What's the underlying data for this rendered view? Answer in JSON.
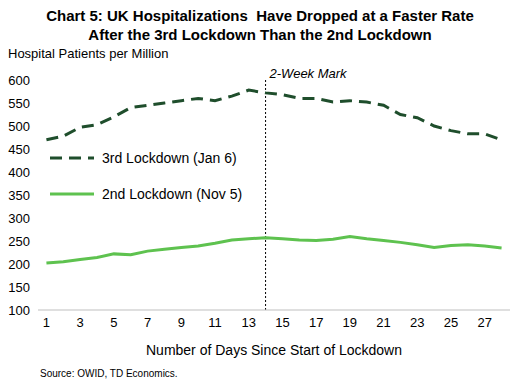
{
  "chart_data": {
    "type": "line",
    "title": "Chart 5: UK Hospitalizations  Have Dropped at a Faster Rate After the 3rd Lockdown Than the 2nd Lockdown",
    "y_label": "Hospital Patients per Million",
    "x_label": "Number of Days Since Start of Lockdown",
    "source": "Source: OWID, TD Economics.",
    "annotations": [
      {
        "x": 14,
        "text": "2-Week Mark"
      }
    ],
    "x": [
      1,
      2,
      3,
      4,
      5,
      6,
      7,
      8,
      9,
      10,
      11,
      12,
      13,
      14,
      15,
      16,
      17,
      18,
      19,
      20,
      21,
      22,
      23,
      24,
      25,
      26,
      27,
      28
    ],
    "series": [
      {
        "name": "2nd Lockdown (Nov 5)",
        "color": "#5ec24f",
        "line_style": "solid",
        "values": [
          202,
          205,
          210,
          214,
          222,
          220,
          228,
          232,
          236,
          239,
          245,
          252,
          255,
          257,
          255,
          252,
          251,
          254,
          260,
          255,
          251,
          247,
          242,
          236,
          240,
          242,
          239,
          235
        ]
      },
      {
        "name": "3rd Lockdown (Jan 6)",
        "color": "#1f4e2c",
        "line_style": "dashed",
        "values": [
          470,
          478,
          497,
          503,
          520,
          540,
          545,
          550,
          555,
          560,
          555,
          565,
          578,
          572,
          568,
          560,
          560,
          552,
          555,
          552,
          545,
          525,
          518,
          500,
          490,
          483,
          483,
          470
        ]
      }
    ],
    "xlim": [
      0.5,
      28.5
    ],
    "xticks": [
      1,
      3,
      5,
      7,
      9,
      11,
      13,
      15,
      17,
      19,
      21,
      23,
      25,
      27
    ],
    "ylim": [
      100,
      600
    ],
    "yticks": [
      100,
      150,
      200,
      250,
      300,
      350,
      400,
      450,
      500,
      550,
      600
    ],
    "grid": false,
    "legend": "left"
  }
}
